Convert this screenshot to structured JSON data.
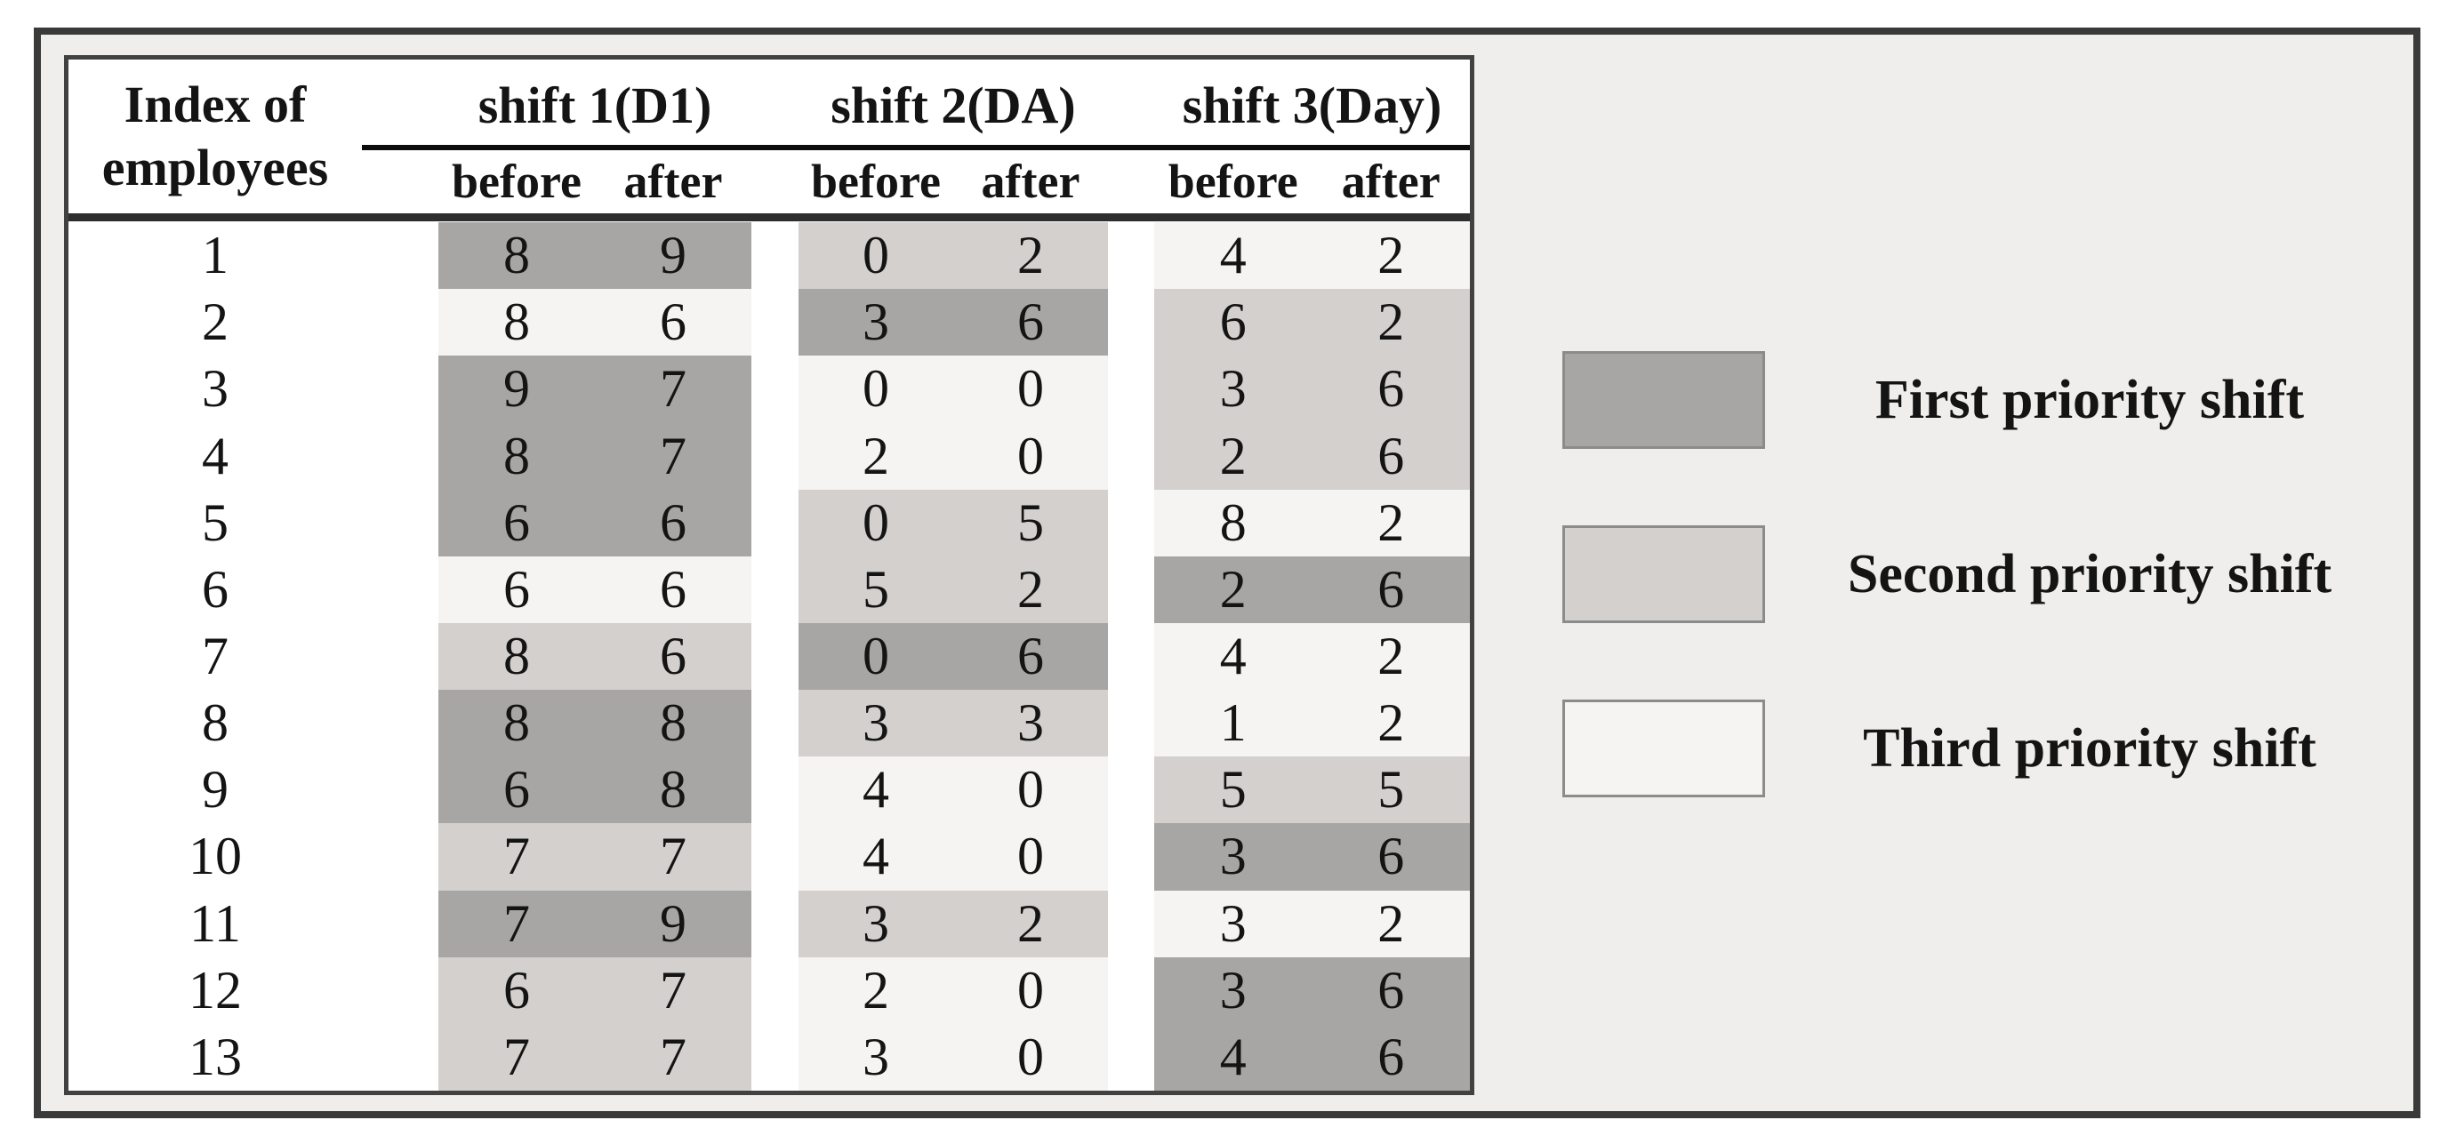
{
  "table": {
    "col1_header": {
      "line1": "Index of",
      "line2": "employees"
    },
    "shifts": [
      {
        "label": "shift 1(D1)"
      },
      {
        "label": "shift 2(DA)"
      },
      {
        "label": "shift 3(Day)"
      }
    ],
    "subheaders": {
      "before": "before",
      "after": "after"
    },
    "rows": [
      {
        "index": "1",
        "cells": [
          {
            "before": "8",
            "after": "9",
            "priority": 1
          },
          {
            "before": "0",
            "after": "2",
            "priority": 2
          },
          {
            "before": "4",
            "after": "2",
            "priority": 3
          }
        ]
      },
      {
        "index": "2",
        "cells": [
          {
            "before": "8",
            "after": "6",
            "priority": 3
          },
          {
            "before": "3",
            "after": "6",
            "priority": 1
          },
          {
            "before": "6",
            "after": "2",
            "priority": 2
          }
        ]
      },
      {
        "index": "3",
        "cells": [
          {
            "before": "9",
            "after": "7",
            "priority": 1
          },
          {
            "before": "0",
            "after": "0",
            "priority": 3
          },
          {
            "before": "3",
            "after": "6",
            "priority": 2
          }
        ]
      },
      {
        "index": "4",
        "cells": [
          {
            "before": "8",
            "after": "7",
            "priority": 1
          },
          {
            "before": "2",
            "after": "0",
            "priority": 3
          },
          {
            "before": "2",
            "after": "6",
            "priority": 2
          }
        ]
      },
      {
        "index": "5",
        "cells": [
          {
            "before": "6",
            "after": "6",
            "priority": 1
          },
          {
            "before": "0",
            "after": "5",
            "priority": 2
          },
          {
            "before": "8",
            "after": "2",
            "priority": 3
          }
        ]
      },
      {
        "index": "6",
        "cells": [
          {
            "before": "6",
            "after": "6",
            "priority": 3
          },
          {
            "before": "5",
            "after": "2",
            "priority": 2
          },
          {
            "before": "2",
            "after": "6",
            "priority": 1
          }
        ]
      },
      {
        "index": "7",
        "cells": [
          {
            "before": "8",
            "after": "6",
            "priority": 2
          },
          {
            "before": "0",
            "after": "6",
            "priority": 1
          },
          {
            "before": "4",
            "after": "2",
            "priority": 3
          }
        ]
      },
      {
        "index": "8",
        "cells": [
          {
            "before": "8",
            "after": "8",
            "priority": 1
          },
          {
            "before": "3",
            "after": "3",
            "priority": 2
          },
          {
            "before": "1",
            "after": "2",
            "priority": 3
          }
        ]
      },
      {
        "index": "9",
        "cells": [
          {
            "before": "6",
            "after": "8",
            "priority": 1
          },
          {
            "before": "4",
            "after": "0",
            "priority": 3
          },
          {
            "before": "5",
            "after": "5",
            "priority": 2
          }
        ]
      },
      {
        "index": "10",
        "cells": [
          {
            "before": "7",
            "after": "7",
            "priority": 2
          },
          {
            "before": "4",
            "after": "0",
            "priority": 3
          },
          {
            "before": "3",
            "after": "6",
            "priority": 1
          }
        ]
      },
      {
        "index": "11",
        "cells": [
          {
            "before": "7",
            "after": "9",
            "priority": 1
          },
          {
            "before": "3",
            "after": "2",
            "priority": 2
          },
          {
            "before": "3",
            "after": "2",
            "priority": 3
          }
        ]
      },
      {
        "index": "12",
        "cells": [
          {
            "before": "6",
            "after": "7",
            "priority": 2
          },
          {
            "before": "2",
            "after": "0",
            "priority": 3
          },
          {
            "before": "3",
            "after": "6",
            "priority": 1
          }
        ]
      },
      {
        "index": "13",
        "cells": [
          {
            "before": "7",
            "after": "7",
            "priority": 2
          },
          {
            "before": "3",
            "after": "0",
            "priority": 3
          },
          {
            "before": "4",
            "after": "6",
            "priority": 1
          }
        ]
      }
    ]
  },
  "legend": {
    "items": [
      {
        "label": "First priority shift",
        "priority": 1
      },
      {
        "label": "Second priority shift",
        "priority": 2
      },
      {
        "label": "Third priority shift",
        "priority": 3
      }
    ]
  },
  "colors": {
    "priority1": "#a7a6a4",
    "priority2": "#d3d0cd",
    "priority3": "#f5f4f2",
    "panel_background": "#efeeec",
    "frame_border": "#3a3a3a",
    "table_border": "#414141",
    "text": "#141414"
  }
}
